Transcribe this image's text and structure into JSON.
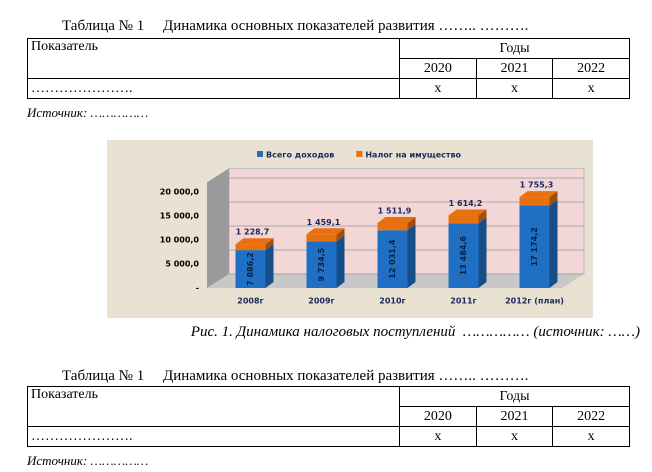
{
  "tables": [
    {
      "caption": "Таблица № 1     Динамика основных показателей развития …….. ……….",
      "indicator": "Показатель",
      "years_title": "Годы",
      "years": [
        "2020",
        "2021",
        "2022"
      ],
      "rows": [
        [
          "………………….",
          "x",
          "x",
          "x"
        ]
      ],
      "source": "Источник: ……………"
    },
    {
      "caption": "Таблица № 1     Динамика основных показателей развития …….. ……….",
      "indicator": "Показатель",
      "years_title": "Годы",
      "years": [
        "2020",
        "2021",
        "2022"
      ],
      "rows": [
        [
          "………………….",
          "x",
          "x",
          "x"
        ]
      ],
      "source": "Источник: ……………"
    }
  ],
  "figure": {
    "caption": "Рис. 1. Динамика налоговых поступлений  …………… (источник: ……)",
    "chart_data": {
      "type": "stacked_bar",
      "categories": [
        "2008г",
        "2009г",
        "2010г",
        "2011г",
        "2012г (план)"
      ],
      "series": [
        {
          "name": "Всего доходов",
          "color": "#1f6fc5",
          "values": [
            7886.2,
            9734.5,
            12031.4,
            13484.6,
            17174.2
          ],
          "value_labels": [
            "7 886,2",
            "9 734,5",
            "12 031,4",
            "13 484,6",
            "17 174,2"
          ]
        },
        {
          "name": "Налог на имущество",
          "color": "#e8700e",
          "values": [
            1228.7,
            1459.1,
            1511.9,
            1614.2,
            1755.3
          ],
          "value_labels": [
            "1 228,7",
            "1 459,1",
            "1 511,9",
            "1 614,2",
            "1 755,3"
          ]
        }
      ],
      "ylim": [
        0,
        22000
      ],
      "yticks": [
        {
          "value": 0,
          "label": "-"
        },
        {
          "value": 5000,
          "label": "5 000,0"
        },
        {
          "value": 10000,
          "label": "10 000,0"
        },
        {
          "value": 15000,
          "label": "15 000,0"
        },
        {
          "value": 20000,
          "label": "20 000,0"
        }
      ],
      "grid": true,
      "legend": "top"
    }
  }
}
